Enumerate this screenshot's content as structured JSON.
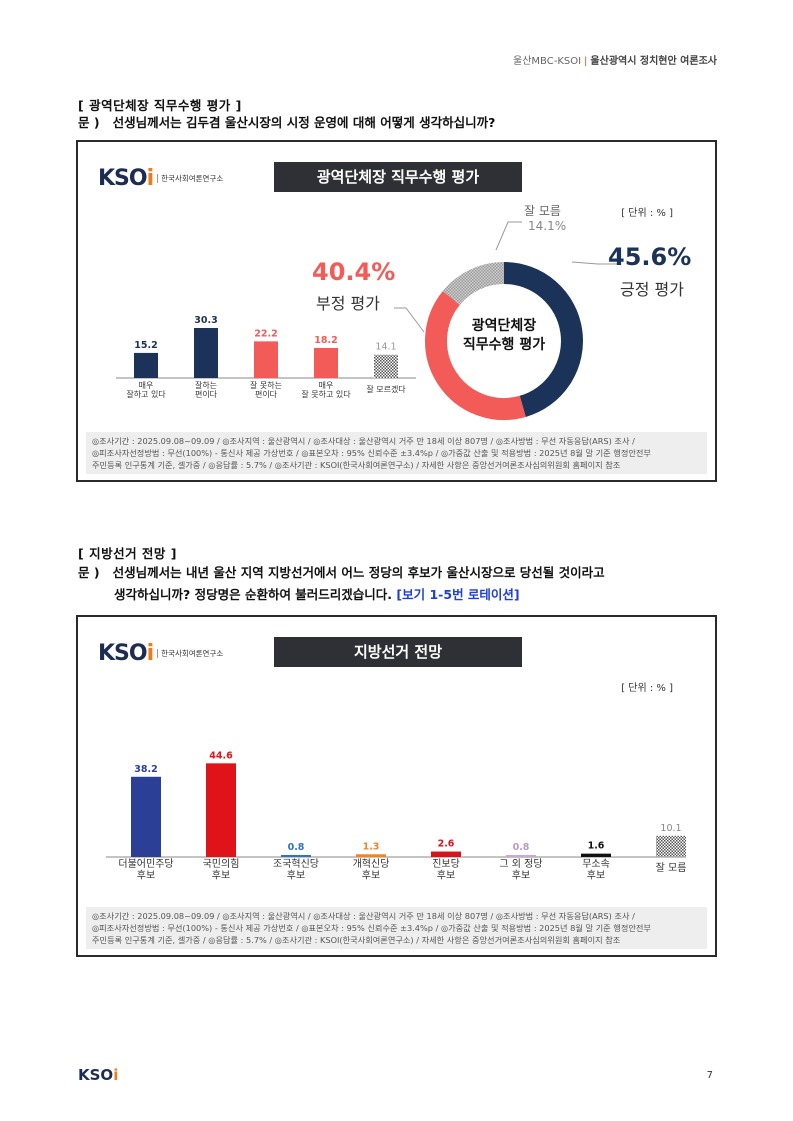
{
  "header": {
    "org": "울산MBC-KSOI",
    "sep": "|",
    "title": "울산광역시 정치현안 여론조사"
  },
  "section1": {
    "title": "[ 광역단체장 직무수행 평가 ]",
    "question_prefix": "문 )",
    "question": "선생님께서는 김두겸 울산시장의 시정 운영에 대해 어떻게 생각하십니까?",
    "panel": {
      "logo_text": "KSOI",
      "logo_sub": "한국사회여론연구소",
      "title": "광역단체장 직무수행 평가",
      "unit": "[ 단위 : % ]",
      "donut_center_1": "광역단체장",
      "donut_center_2": "직무수행 평가",
      "pos_pct": "45.6%",
      "pos_label": "긍정 평가",
      "neg_pct": "40.4%",
      "neg_label": "부정 평가",
      "dk_label": "잘 모름",
      "dk_pct": "14.1%",
      "footer_line1": "◎조사기간 : 2025.09.08~09.09 / ◎조사지역 : 울산광역시 / ◎조사대상 : 울산광역시 거주 만 18세 이상 807명 / ◎조사방법 : 무선 자동응답(ARS) 조사 /",
      "footer_line2": "◎피조사자선정방법 : 무선(100%) - 통신사 제공 가상번호 / ◎표본오차 : 95% 신뢰수준 ±3.4%p / ◎가중값 산출 및 적용방법 : 2025년 8월 말 기준 행정안전부",
      "footer_line3": "주민등록 인구통계 기준, 셀가중 / ◎응답률 : 5.7% / ◎조사기관 : KSOI(한국사회여론연구소) / 자세한 사항은 중앙선거여론조사심의위원회 홈페이지 참조"
    }
  },
  "section2": {
    "title": "[ 지방선거 전망 ]",
    "question_prefix": "문 )",
    "question_line1": "선생님께서는 내년 울산 지역 지방선거에서 어느 정당의 후보가 울산시장으로 당선될 것이라고",
    "question_line2": "생각하십니까? 정당명은 순환하여 불러드리겠습니다.",
    "question_note": "[보기 1-5번 로테이션]",
    "panel": {
      "logo_text": "KSOI",
      "logo_sub": "한국사회여론연구소",
      "title": "지방선거 전망",
      "unit": "[ 단위 : % ]",
      "footer_line1": "◎조사기간 : 2025.09.08~09.09 / ◎조사지역 : 울산광역시 / ◎조사대상 : 울산광역시 거주 만 18세 이상 807명 / ◎조사방법 : 무선 자동응답(ARS) 조사 /",
      "footer_line2": "◎피조사자선정방법 : 무선(100%) - 통신사 제공 가상번호 / ◎표본오차 : 95% 신뢰수준 ±3.4%p / ◎가중값 산출 및 적용방법 : 2025년 8월 말 기준 행정안전부",
      "footer_line3": "주민등록 인구통계 기준, 셀가중 / ◎응답률 : 5.7% / ◎조사기관 : KSOI(한국사회여론연구소) / 자세한 사항은 중앙선거여론조사심의위원회 홈페이지 참조"
    }
  },
  "chart_data": [
    {
      "type": "bar",
      "title": "광역단체장 직무수행 평가",
      "categories": [
        [
          "매우",
          "잘하고 있다"
        ],
        [
          "잘하는",
          "편이다"
        ],
        [
          "잘 못하는",
          "편이다"
        ],
        [
          "매우",
          "잘 못하고 있다"
        ],
        [
          "잘 모르겠다"
        ]
      ],
      "values": [
        15.2,
        30.3,
        22.2,
        18.2,
        14.1
      ],
      "colors": [
        "#1b3358",
        "#1b3358",
        "#f35b58",
        "#f35b58",
        "#bbbbbb"
      ],
      "value_colors": [
        "#1b3358",
        "#1b3358",
        "#f35b58",
        "#f35b58",
        "#999999"
      ],
      "patterned": [
        false,
        false,
        false,
        false,
        true
      ]
    },
    {
      "type": "pie",
      "title": "광역단체장 직무수행 평가",
      "labels": [
        "긍정 평가",
        "부정 평가",
        "잘 모름"
      ],
      "values": [
        45.6,
        40.4,
        14.1
      ],
      "colors": [
        "#1b3358",
        "#f35b58",
        "#c4c4c4"
      ]
    },
    {
      "type": "bar",
      "title": "지방선거 전망",
      "categories": [
        [
          "더불어민주당",
          "후보"
        ],
        [
          "국민의힘",
          "후보"
        ],
        [
          "조국혁신당",
          "후보"
        ],
        [
          "개혁신당",
          "후보"
        ],
        [
          "진보당",
          "후보"
        ],
        [
          "그 외 정당",
          "후보"
        ],
        [
          "무소속",
          "후보"
        ],
        [
          "잘 모름"
        ]
      ],
      "values": [
        38.2,
        44.6,
        0.8,
        1.3,
        2.6,
        0.8,
        1.6,
        10.1
      ],
      "colors": [
        "#2c3f96",
        "#e0121a",
        "#2c75b8",
        "#f2841e",
        "#d8121a",
        "#c8a8d8",
        "#111111",
        "#bbbbbb"
      ],
      "value_colors": [
        "#2c3f96",
        "#e0121a",
        "#2c75b8",
        "#f2841e",
        "#d8121a",
        "#b89ac8",
        "#111111",
        "#888888"
      ],
      "patterned": [
        false,
        false,
        false,
        false,
        false,
        false,
        false,
        true
      ]
    }
  ],
  "footer": {
    "logo": "KSOI",
    "page": "7"
  }
}
